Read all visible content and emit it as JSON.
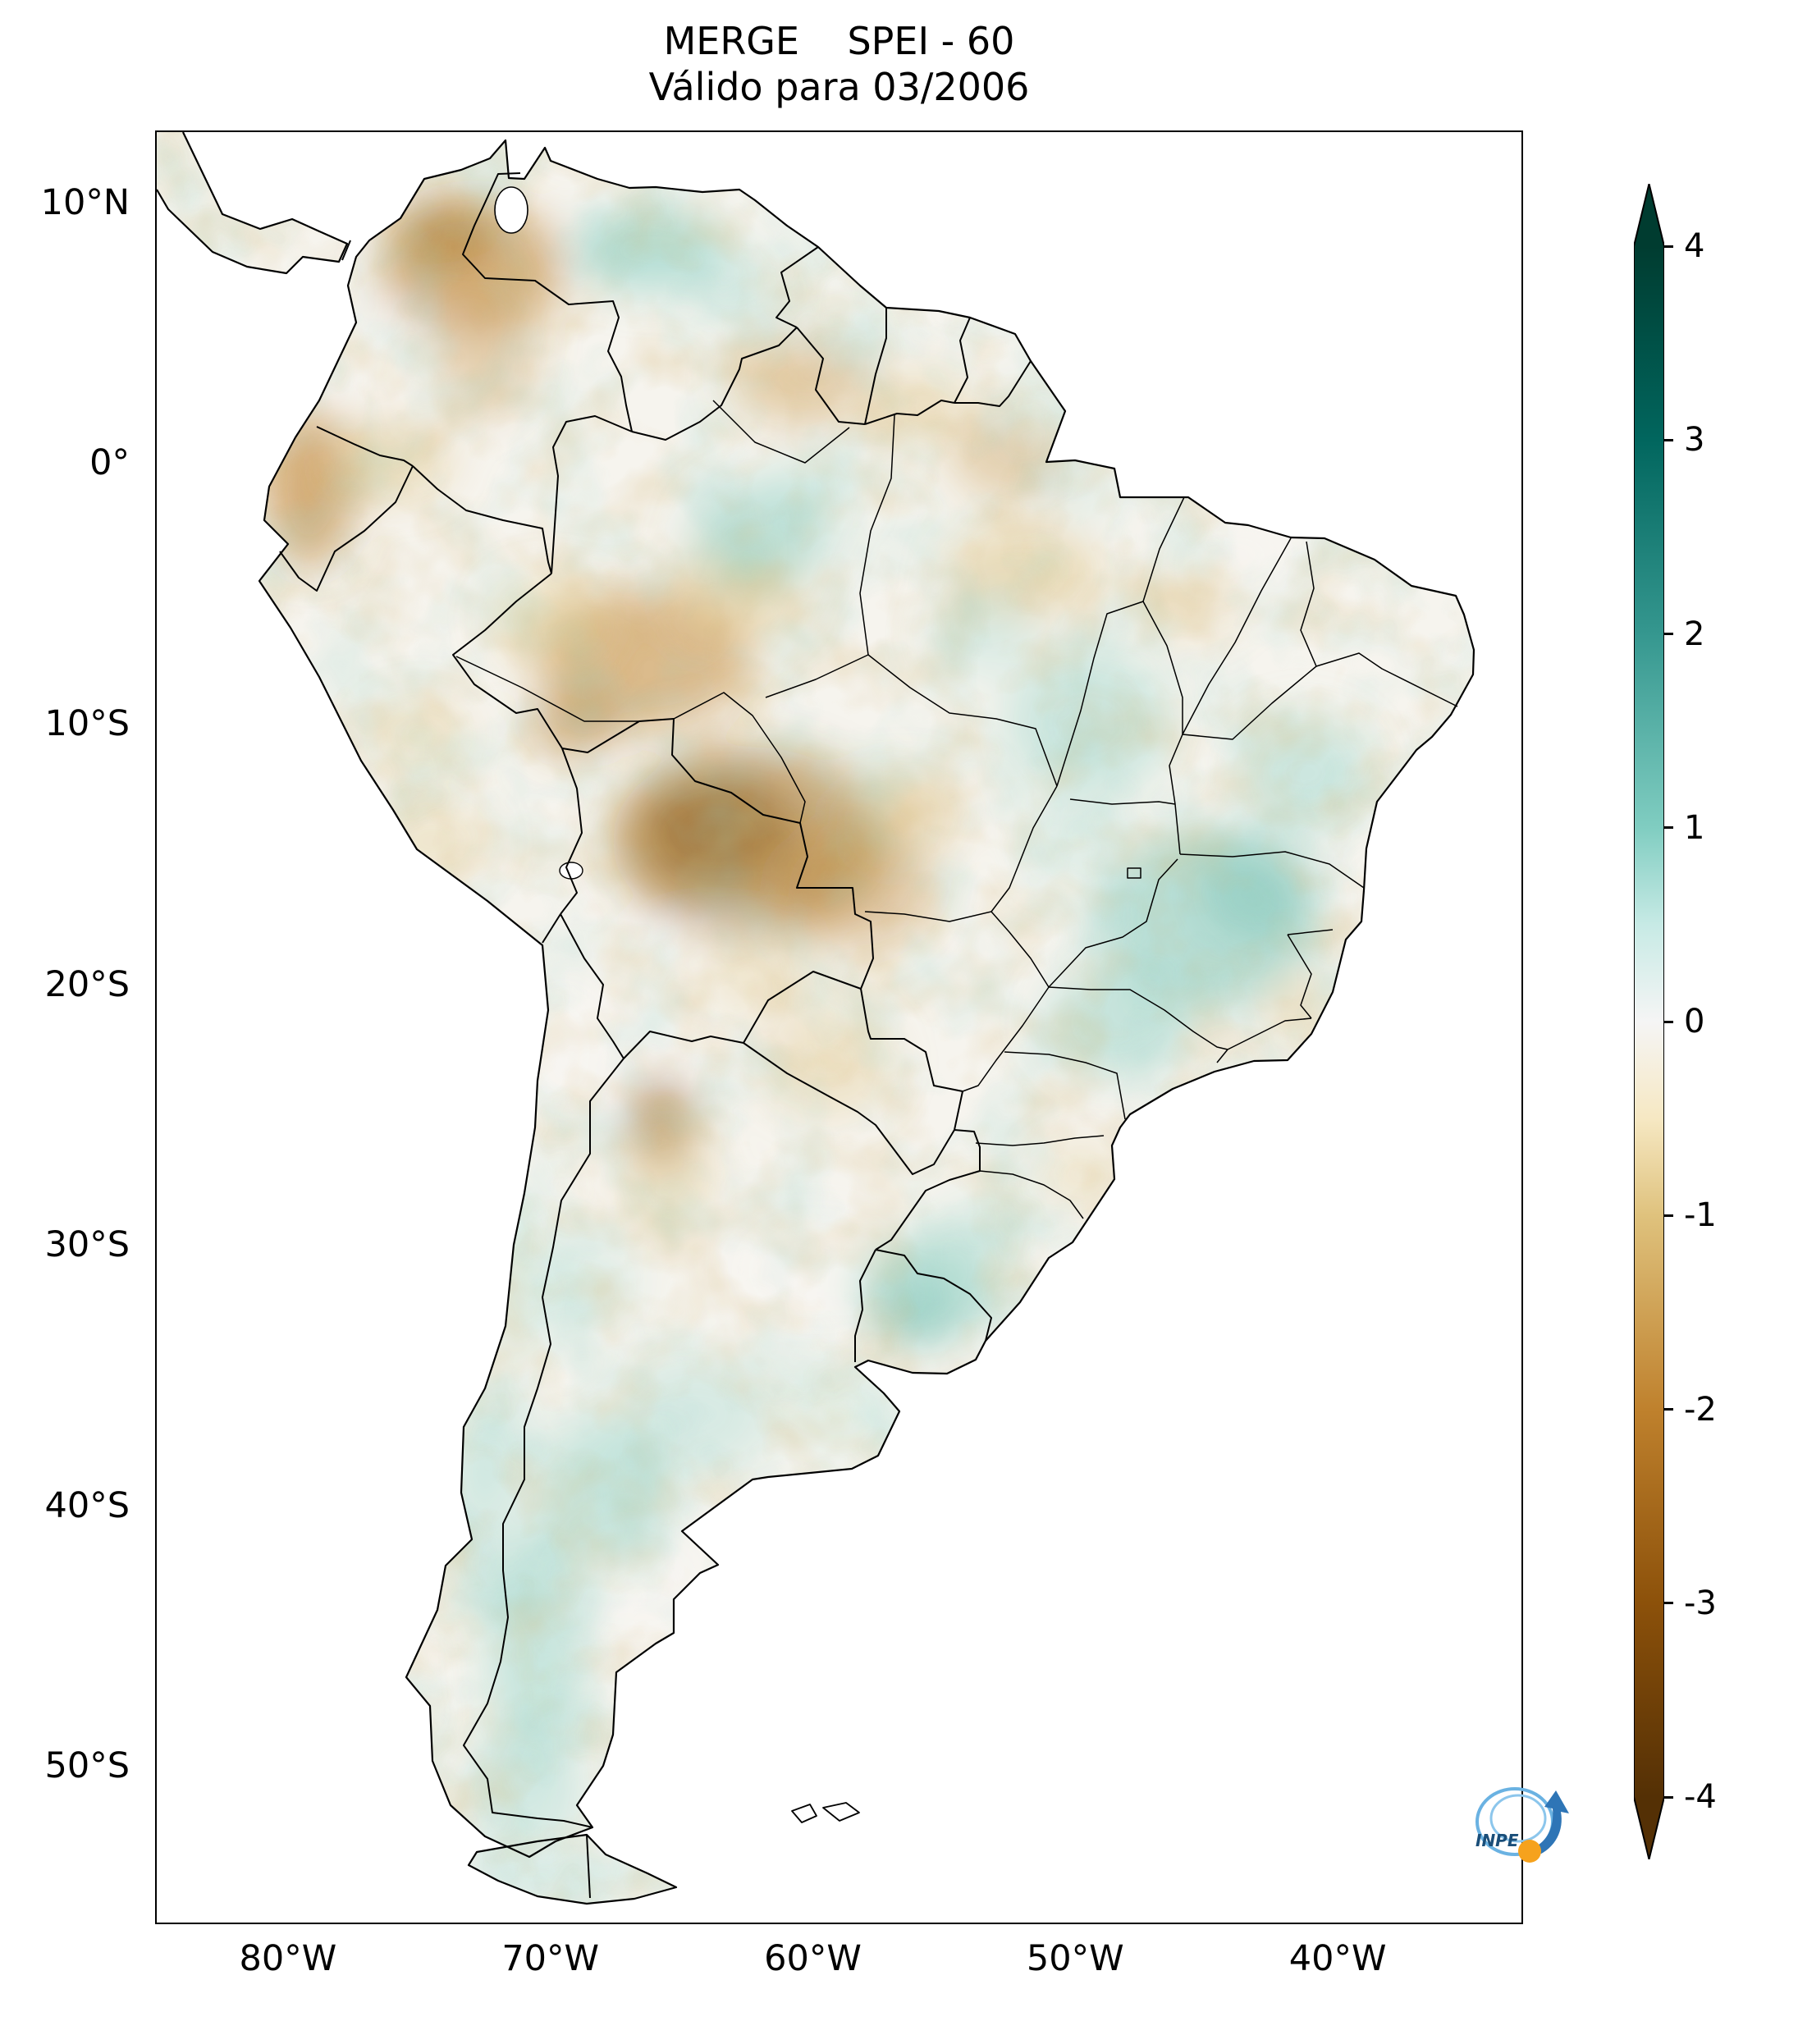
{
  "figure": {
    "title_line1": "MERGE    SPEI - 60",
    "title_line2": "Válido para 03/2006"
  },
  "chart_data": {
    "type": "heatmap",
    "title": "MERGE    SPEI - 60",
    "subtitle": "Válido para 03/2006",
    "product": "MERGE",
    "index": "SPEI-60",
    "valid_for": "03/2006",
    "region": "South America",
    "grid": false,
    "x_axis": {
      "label": "",
      "range": [
        -85,
        -33
      ],
      "ticks": [
        {
          "value": -80,
          "label": "80°W"
        },
        {
          "value": -70,
          "label": "70°W"
        },
        {
          "value": -60,
          "label": "60°W"
        },
        {
          "value": -50,
          "label": "50°W"
        },
        {
          "value": -40,
          "label": "40°W"
        }
      ]
    },
    "y_axis": {
      "label": "",
      "range": [
        12.7,
        -56
      ],
      "ticks": [
        {
          "value": 10,
          "label": "10°N"
        },
        {
          "value": 0,
          "label": "0°"
        },
        {
          "value": -10,
          "label": "10°S"
        },
        {
          "value": -20,
          "label": "20°S"
        },
        {
          "value": -30,
          "label": "30°S"
        },
        {
          "value": -40,
          "label": "40°S"
        },
        {
          "value": -50,
          "label": "50°S"
        }
      ]
    },
    "colorbar": {
      "orientation": "vertical",
      "position": "right",
      "min": -4,
      "max": 4,
      "extend": "both",
      "ticks": [
        {
          "value": 4,
          "label": "4"
        },
        {
          "value": 3,
          "label": "3"
        },
        {
          "value": 2,
          "label": "2"
        },
        {
          "value": 1,
          "label": "1"
        },
        {
          "value": 0,
          "label": "0"
        },
        {
          "value": -1,
          "label": "-1"
        },
        {
          "value": -2,
          "label": "-2"
        },
        {
          "value": -3,
          "label": "-3"
        },
        {
          "value": -4,
          "label": "-4"
        }
      ],
      "palette": [
        "#543005",
        "#8c510a",
        "#bf812d",
        "#dfc27d",
        "#f6e8c3",
        "#f5f5f5",
        "#c7eae5",
        "#80cdc1",
        "#35978f",
        "#01665e",
        "#003c30"
      ],
      "meaning": "brown = dry (negative SPEI), teal = wet (positive SPEI)"
    },
    "anomalies": [
      {
        "area": "Northern Colombia / western Venezuela",
        "sign": "dry",
        "approx_spei": -2
      },
      {
        "area": "Coastal Ecuador / northwestern Peru",
        "sign": "dry",
        "approx_spei": -2
      },
      {
        "area": "Southwestern Amazonia (Acre, Rondônia, northern Bolivia, western Mato Grosso)",
        "sign": "dry",
        "approx_spei": -2.5
      },
      {
        "area": "Roraima / Guyana border and northern Pará",
        "sign": "dry",
        "approx_spei": -1
      },
      {
        "area": "Central-north Venezuela",
        "sign": "wet",
        "approx_spei": 1.5
      },
      {
        "area": "Central Amazonas",
        "sign": "wet",
        "approx_spei": 1
      },
      {
        "area": "Central Brazil (Tocantins, Goiás, Minas Gerais, Bahia)",
        "sign": "wet",
        "approx_spei": 1.5
      },
      {
        "area": "Uruguay / southern Rio Grande do Sul",
        "sign": "wet",
        "approx_spei": 1.5
      },
      {
        "area": "Northwestern Argentina (Salta/Jujuy)",
        "sign": "dry",
        "approx_spei": -2
      },
      {
        "area": "Patagonian Andes (southern Chile / Argentina)",
        "sign": "wet",
        "approx_spei": 1
      }
    ]
  },
  "logo": {
    "label": "INPE"
  }
}
